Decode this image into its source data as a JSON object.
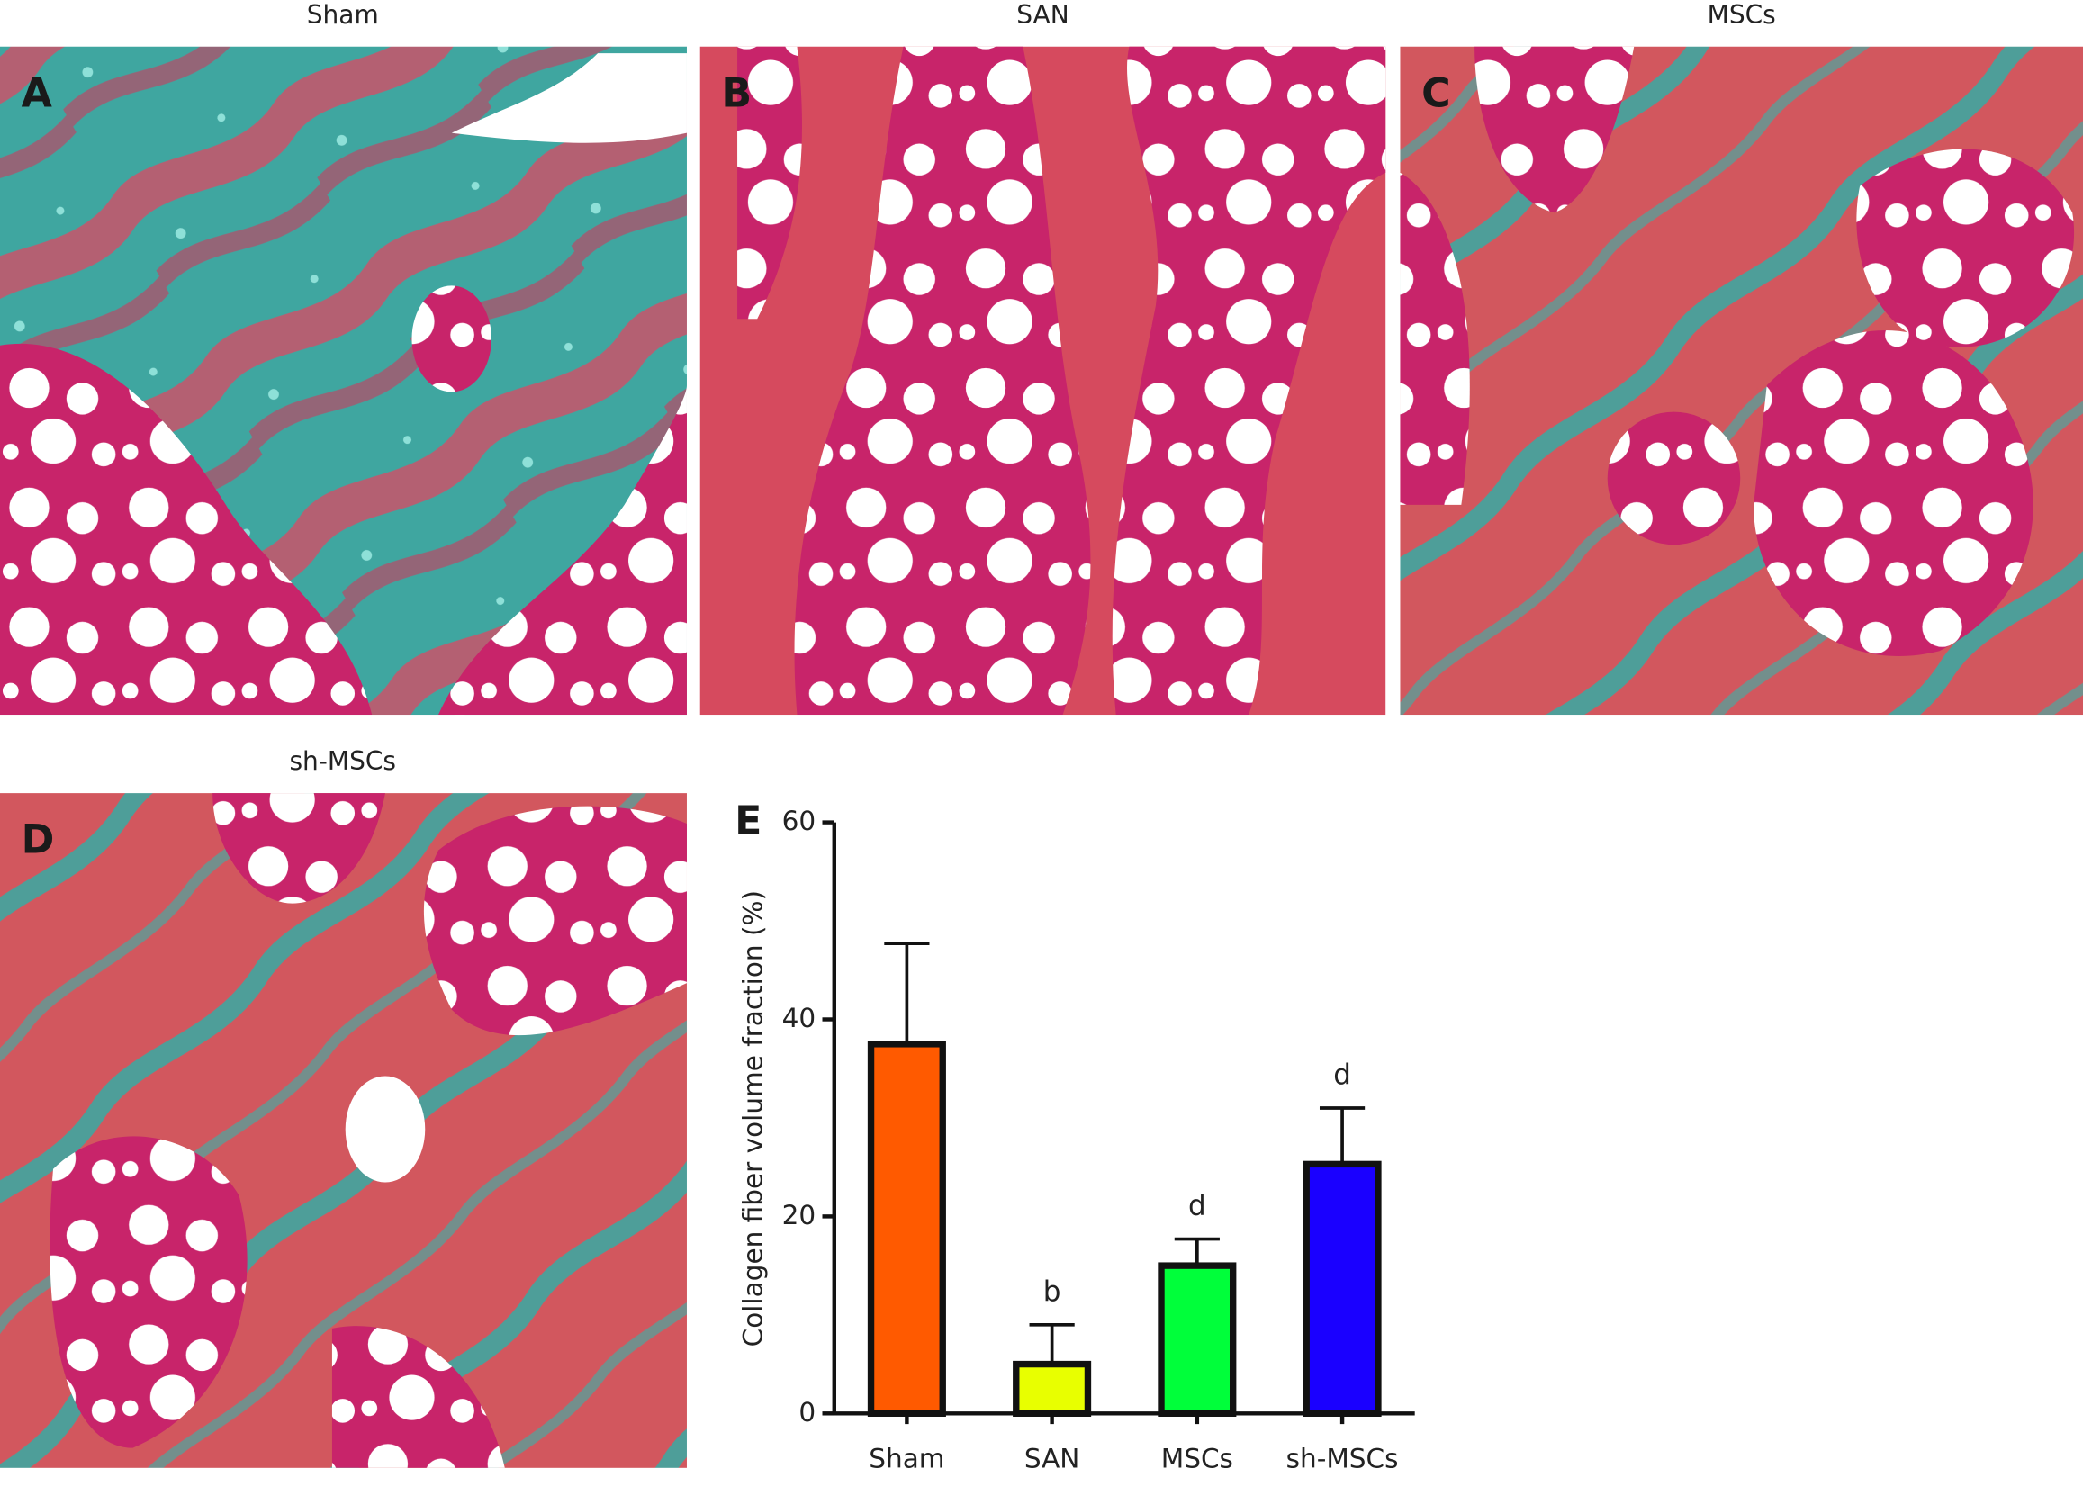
{
  "panels": [
    {
      "letter": "A",
      "title": "Sham"
    },
    {
      "letter": "B",
      "title": "SAN"
    },
    {
      "letter": "C",
      "title": "MSCs"
    },
    {
      "letter": "D",
      "title": "sh-MSCs"
    }
  ],
  "chart_data": {
    "type": "bar",
    "letter": "E",
    "y_label": "Collagen fiber volume fraction (%)",
    "categories": [
      "Sham",
      "SAN",
      "MSCs",
      "sh-MSCs"
    ],
    "values": [
      37.5,
      5,
      15,
      25.3
    ],
    "errors": [
      10.2,
      4,
      2.7,
      5.7
    ],
    "annotations": [
      null,
      "b",
      "d",
      "d"
    ],
    "colors": [
      "#ff5a00",
      "#e8ff00",
      "#00ff3a",
      "#1a00ff"
    ],
    "ylim": [
      0,
      60
    ],
    "yticks": [
      0,
      20,
      40,
      60
    ]
  }
}
